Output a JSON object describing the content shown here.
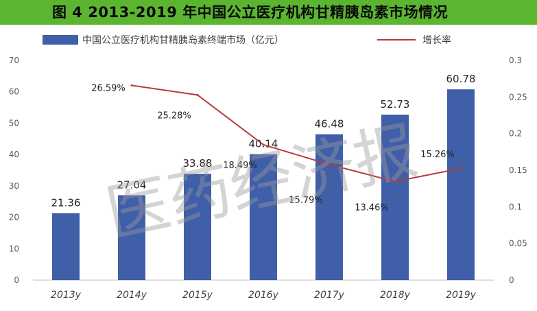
{
  "title": "图 4  2013-2019 年中国公立医疗机构甘精胰岛素市场情况",
  "watermark": "医药经济报",
  "colors": {
    "title_bg": "#5cb531",
    "bar": "#3f5fa8",
    "line": "#b83a3a",
    "axis": "#bfbfbf"
  },
  "chart_data": {
    "type": "bar",
    "categories": [
      "2013y",
      "2014y",
      "2015y",
      "2016y",
      "2017y",
      "2018y",
      "2019y"
    ],
    "series": [
      {
        "name": "中国公立医疗机构甘精胰岛素终端市场（亿元）",
        "type": "bar",
        "axis": "left",
        "values": [
          21.36,
          27.04,
          33.88,
          40.14,
          46.48,
          52.73,
          60.78
        ],
        "labels": [
          "21.36",
          "27.04",
          "33.88",
          "40.14",
          "46.48",
          "52.73",
          "60.78"
        ]
      },
      {
        "name": "增长率",
        "type": "line",
        "axis": "right",
        "values": [
          null,
          0.2659,
          0.2528,
          0.1849,
          0.1579,
          0.1346,
          0.1526
        ],
        "labels": [
          "",
          "26.59%",
          "25.28%",
          "18.49%",
          "15.79%",
          "13.46%",
          "15.26%"
        ]
      }
    ],
    "left_axis": {
      "ylim": [
        0,
        70
      ],
      "ticks": [
        "0",
        "10",
        "20",
        "30",
        "40",
        "50",
        "60",
        "70"
      ]
    },
    "right_axis": {
      "ylim": [
        0,
        0.3
      ],
      "ticks": [
        "0",
        "0.05",
        "0.1",
        "0.15",
        "0.2",
        "0.25",
        "0.3"
      ]
    },
    "legend": "top",
    "grid": false
  }
}
